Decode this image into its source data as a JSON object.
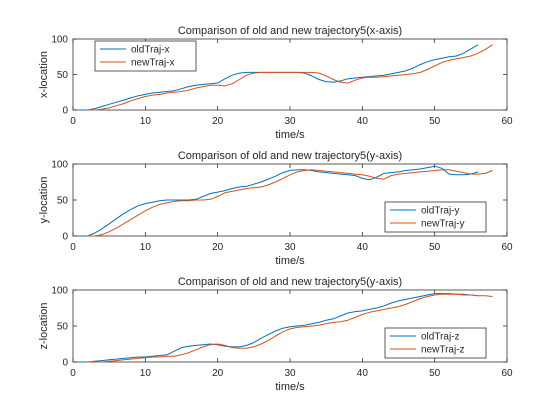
{
  "chart_data": [
    {
      "type": "line",
      "title": "Comparison of old and new trajectory5(x-axis)",
      "xlabel": "time/s",
      "ylabel": "x-location",
      "xlim": [
        0,
        60
      ],
      "ylim": [
        0,
        100
      ],
      "xticks": [
        "0",
        "10",
        "20",
        "30",
        "40",
        "50",
        "60"
      ],
      "yticks": [
        "0",
        "50",
        "100"
      ],
      "legend": "top-left",
      "series": [
        {
          "name": "oldTraj-x",
          "color": "#0072BD",
          "x": [
            1,
            2,
            3,
            4,
            5,
            6,
            7,
            8,
            9,
            10,
            11,
            12,
            13,
            14,
            15,
            16,
            17,
            18,
            19,
            20,
            21,
            22,
            23,
            24,
            25,
            26,
            27,
            28,
            29,
            30,
            31,
            32,
            33,
            34,
            35,
            36,
            37,
            38,
            39,
            40,
            41,
            42,
            43,
            44,
            45,
            46,
            47,
            48,
            49,
            50,
            51,
            52,
            53,
            54,
            55,
            56
          ],
          "values": [
            0,
            0,
            2,
            5,
            8,
            11,
            14,
            17,
            20,
            22,
            24,
            25,
            26,
            27,
            30,
            33,
            35,
            36,
            37,
            38,
            44,
            49,
            52,
            53,
            53,
            53,
            53,
            53,
            53,
            53,
            53,
            52,
            48,
            43,
            40,
            39,
            41,
            44,
            45,
            46,
            47,
            48,
            49,
            51,
            53,
            55,
            59,
            64,
            68,
            71,
            73,
            75,
            76,
            80,
            86,
            92
          ]
        },
        {
          "name": "newTraj-x",
          "color": "#D95319",
          "x": [
            2,
            3,
            4,
            5,
            6,
            7,
            8,
            9,
            10,
            11,
            12,
            13,
            14,
            15,
            16,
            17,
            18,
            19,
            20,
            21,
            22,
            23,
            24,
            25,
            26,
            27,
            28,
            29,
            30,
            31,
            32,
            33,
            34,
            35,
            36,
            37,
            38,
            39,
            40,
            41,
            42,
            43,
            44,
            45,
            46,
            47,
            48,
            49,
            50,
            51,
            52,
            53,
            54,
            55,
            56,
            57,
            58
          ],
          "values": [
            0,
            0,
            1,
            3,
            6,
            9,
            13,
            16,
            19,
            21,
            22,
            24,
            25,
            26,
            28,
            31,
            33,
            35,
            35,
            34,
            37,
            43,
            49,
            52,
            53,
            53,
            53,
            53,
            53,
            53,
            53,
            53,
            52,
            48,
            43,
            39,
            38,
            42,
            45,
            46,
            46,
            47,
            48,
            49,
            50,
            51,
            53,
            57,
            62,
            67,
            70,
            72,
            74,
            76,
            80,
            85,
            92
          ]
        }
      ]
    },
    {
      "type": "line",
      "title": "Comparison of old and new trajectory5(y-axis)",
      "xlabel": "time/s",
      "ylabel": "y-location",
      "xlim": [
        0,
        60
      ],
      "ylim": [
        0,
        100
      ],
      "xticks": [
        "0",
        "10",
        "20",
        "30",
        "40",
        "50",
        "60"
      ],
      "yticks": [
        "0",
        "50",
        "100"
      ],
      "legend": "bottom-right",
      "series": [
        {
          "name": "oldTraj-y",
          "color": "#0072BD",
          "x": [
            1,
            2,
            3,
            4,
            5,
            6,
            7,
            8,
            9,
            10,
            11,
            12,
            13,
            14,
            15,
            16,
            17,
            18,
            19,
            20,
            21,
            22,
            23,
            24,
            25,
            26,
            27,
            28,
            29,
            30,
            31,
            32,
            33,
            34,
            35,
            36,
            37,
            38,
            39,
            40,
            41,
            42,
            43,
            44,
            45,
            46,
            47,
            48,
            49,
            50,
            51,
            52,
            53,
            54,
            55,
            56
          ],
          "values": [
            0,
            0,
            4,
            10,
            17,
            24,
            31,
            37,
            42,
            45,
            47,
            49,
            50,
            50,
            50,
            50,
            51,
            55,
            59,
            61,
            63,
            66,
            68,
            69,
            72,
            75,
            79,
            83,
            88,
            91,
            92,
            92,
            91,
            89,
            88,
            87,
            86,
            85,
            84,
            80,
            78,
            82,
            87,
            88,
            89,
            91,
            92,
            93,
            95,
            97,
            94,
            86,
            85,
            85,
            86,
            89
          ]
        },
        {
          "name": "newTraj-y",
          "color": "#D95319",
          "x": [
            2,
            3,
            4,
            5,
            6,
            7,
            8,
            9,
            10,
            11,
            12,
            13,
            14,
            15,
            16,
            17,
            18,
            19,
            20,
            21,
            22,
            23,
            24,
            25,
            26,
            27,
            28,
            29,
            30,
            31,
            32,
            33,
            34,
            35,
            36,
            37,
            38,
            39,
            40,
            41,
            42,
            43,
            44,
            45,
            46,
            47,
            48,
            49,
            50,
            51,
            52,
            53,
            54,
            55,
            56,
            57,
            58
          ],
          "values": [
            0,
            0,
            2,
            6,
            11,
            17,
            23,
            29,
            35,
            40,
            44,
            46,
            48,
            49,
            49,
            50,
            50,
            51,
            55,
            60,
            62,
            64,
            66,
            67,
            68,
            71,
            75,
            80,
            85,
            89,
            91,
            92,
            91,
            90,
            89,
            88,
            87,
            86,
            85,
            83,
            80,
            79,
            84,
            86,
            87,
            88,
            89,
            90,
            91,
            92,
            92,
            90,
            88,
            86,
            86,
            87,
            91
          ]
        }
      ]
    },
    {
      "type": "line",
      "title": "Comparison of old and new trajectory5(y-axis)",
      "xlabel": "time/s",
      "ylabel": "z-location",
      "xlim": [
        0,
        60
      ],
      "ylim": [
        0,
        100
      ],
      "xticks": [
        "0",
        "10",
        "20",
        "30",
        "40",
        "50",
        "60"
      ],
      "yticks": [
        "0",
        "50",
        "100"
      ],
      "legend": "bottom-right",
      "series": [
        {
          "name": "oldTraj-z",
          "color": "#0072BD",
          "x": [
            1,
            2,
            3,
            4,
            5,
            6,
            7,
            8,
            9,
            10,
            11,
            12,
            13,
            14,
            15,
            16,
            17,
            18,
            19,
            20,
            21,
            22,
            23,
            24,
            25,
            26,
            27,
            28,
            29,
            30,
            31,
            32,
            33,
            34,
            35,
            36,
            37,
            38,
            39,
            40,
            41,
            42,
            43,
            44,
            45,
            46,
            47,
            48,
            49,
            50,
            51,
            52,
            53,
            54,
            55,
            56
          ],
          "values": [
            0,
            0,
            1,
            2,
            3,
            4,
            5,
            6,
            7,
            7,
            8,
            9,
            10,
            15,
            20,
            22,
            23,
            24,
            25,
            24,
            22,
            21,
            21,
            23,
            27,
            33,
            38,
            43,
            47,
            49,
            50,
            51,
            53,
            55,
            58,
            60,
            64,
            68,
            70,
            71,
            73,
            75,
            78,
            82,
            85,
            87,
            89,
            91,
            93,
            95,
            95,
            95,
            94,
            94,
            93,
            92
          ]
        },
        {
          "name": "newTraj-z",
          "color": "#D95319",
          "x": [
            2,
            3,
            4,
            5,
            6,
            7,
            8,
            9,
            10,
            11,
            12,
            13,
            14,
            15,
            16,
            17,
            18,
            19,
            20,
            21,
            22,
            23,
            24,
            25,
            26,
            27,
            28,
            29,
            30,
            31,
            32,
            33,
            34,
            35,
            36,
            37,
            38,
            39,
            40,
            41,
            42,
            43,
            44,
            45,
            46,
            47,
            48,
            49,
            50,
            51,
            52,
            53,
            54,
            55,
            56,
            57,
            58
          ],
          "values": [
            0,
            0,
            0,
            1,
            2,
            3,
            4,
            5,
            6,
            7,
            7,
            8,
            8,
            10,
            13,
            17,
            21,
            24,
            25,
            23,
            20,
            19,
            19,
            21,
            25,
            30,
            36,
            42,
            46,
            48,
            49,
            50,
            51,
            53,
            55,
            56,
            58,
            62,
            66,
            69,
            71,
            73,
            75,
            77,
            80,
            84,
            88,
            91,
            93,
            94,
            94,
            94,
            93,
            93,
            92,
            92,
            91
          ]
        }
      ]
    }
  ]
}
